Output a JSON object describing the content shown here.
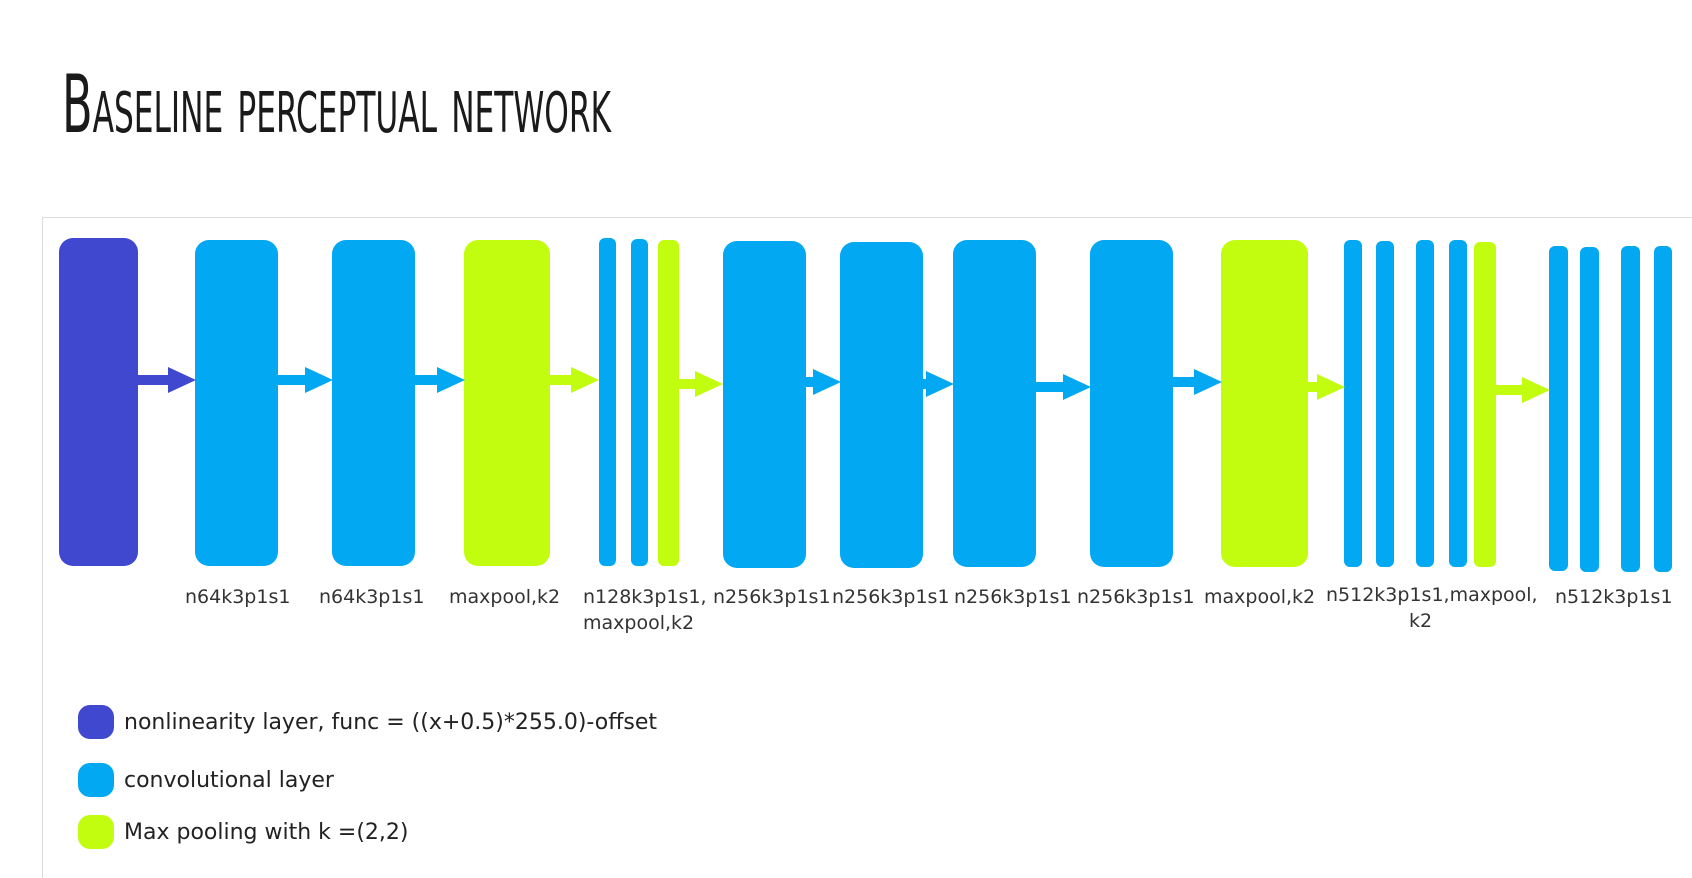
{
  "title": "Baseline perceptual network",
  "colors": {
    "nonlinearity": "#4048cf",
    "conv": "#02a8f2",
    "pool": "#c2fd10"
  },
  "layer_labels": [
    "n64k3p1s1",
    "n64k3p1s1",
    "maxpool,k2",
    "n128k3p1s1,",
    "maxpool,k2",
    "n256k3p1s1",
    "n256k3p1s1",
    "n256k3p1s1",
    "n256k3p1s1",
    "maxpool,k2",
    "n512k3p1s1,maxpool,",
    "k2",
    "n512k3p1s1"
  ],
  "legend": [
    {
      "text": "nonlinearity layer, func = ((x+0.5)*255.0)-offset",
      "color": "#4048cf"
    },
    {
      "text": "convolutional layer",
      "color": "#02a8f2"
    },
    {
      "text": "Max pooling with k =(2,2)",
      "color": "#c2fd10"
    }
  ]
}
